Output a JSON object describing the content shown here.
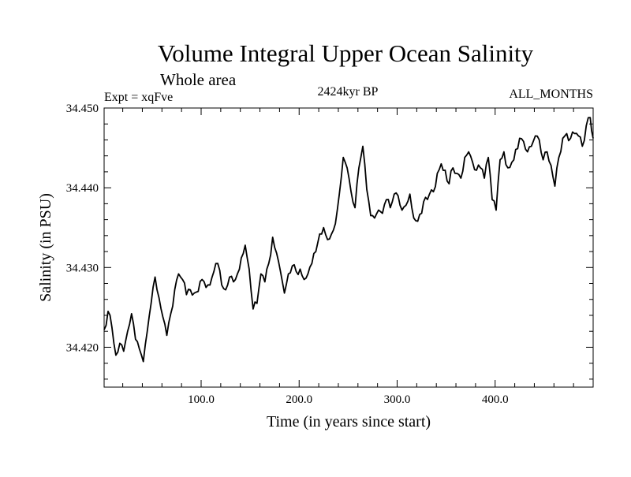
{
  "chart_data": {
    "type": "line",
    "title": "Volume Integral Upper Ocean Salinity",
    "subtitle": "Whole area",
    "experiment_label": "Expt = xqFve",
    "period_label": "2424kyr BP",
    "months_label": "ALL_MONTHS",
    "xlabel": "Time (in years since start)",
    "ylabel": "Salinity (in PSU)",
    "xlim": [
      1,
      500
    ],
    "ylim": [
      34.415,
      34.45
    ],
    "x_ticks": [
      100,
      200,
      300,
      400
    ],
    "x_tick_labels": [
      "100.0",
      "200.0",
      "300.0",
      "400.0"
    ],
    "y_ticks": [
      34.42,
      34.43,
      34.44,
      34.45
    ],
    "y_tick_labels": [
      "34.420",
      "34.430",
      "34.440",
      "34.450"
    ],
    "grid": false,
    "series": [
      {
        "name": "salinity",
        "color": "#000000",
        "x": [
          1,
          5,
          9,
          13,
          17,
          21,
          25,
          29,
          33,
          37,
          41,
          45,
          49,
          53,
          57,
          61,
          65,
          69,
          73,
          77,
          81,
          85,
          89,
          93,
          97,
          101,
          105,
          109,
          113,
          117,
          121,
          125,
          129,
          133,
          137,
          141,
          145,
          149,
          153,
          157,
          161,
          165,
          169,
          173,
          177,
          181,
          185,
          189,
          193,
          197,
          201,
          205,
          209,
          213,
          217,
          221,
          225,
          229,
          233,
          237,
          241,
          245,
          249,
          253,
          257,
          261,
          265,
          269,
          273,
          277,
          281,
          285,
          289,
          293,
          297,
          301,
          305,
          309,
          313,
          317,
          321,
          325,
          329,
          333,
          337,
          341,
          345,
          349,
          353,
          357,
          361,
          365,
          369,
          373,
          377,
          381,
          385,
          389,
          393,
          397,
          401,
          405,
          409,
          413,
          417,
          421,
          425,
          429,
          433,
          437,
          441,
          445,
          449,
          453,
          457,
          461,
          465,
          469,
          473,
          477,
          481,
          485,
          489,
          493,
          497,
          500
        ],
        "values": [
          34.4222,
          34.4245,
          34.4225,
          34.419,
          34.4205,
          34.4195,
          34.422,
          34.4242,
          34.421,
          34.4198,
          34.4182,
          34.422,
          34.4255,
          34.4288,
          34.4262,
          34.4238,
          34.4215,
          34.4242,
          34.4272,
          34.4292,
          34.4285,
          34.4266,
          34.4272,
          34.4268,
          34.427,
          34.4285,
          34.4275,
          34.4278,
          34.4295,
          34.4305,
          34.4278,
          34.4272,
          34.4288,
          34.4282,
          34.4292,
          34.4312,
          34.4328,
          34.4298,
          34.4248,
          34.4255,
          34.4292,
          34.4282,
          34.4305,
          34.4338,
          34.4318,
          34.4295,
          34.4268,
          34.4292,
          34.4302,
          34.4295,
          34.4298,
          34.4285,
          34.4292,
          34.4305,
          34.432,
          34.4342,
          34.435,
          34.4335,
          34.4342,
          34.4355,
          34.4392,
          34.4438,
          34.4425,
          34.4395,
          34.4375,
          34.4425,
          34.4452,
          34.4398,
          34.4365,
          34.4362,
          34.4372,
          34.4368,
          34.4385,
          34.4375,
          34.4392,
          34.439,
          34.4372,
          34.4378,
          34.4392,
          34.4362,
          34.4358,
          34.4368,
          34.4388,
          34.4392,
          34.4395,
          34.4418,
          34.443,
          34.4422,
          34.4405,
          34.4425,
          34.4418,
          34.4412,
          34.4438,
          34.4445,
          34.4432,
          34.4422,
          34.4425,
          34.4412,
          34.4438,
          34.4385,
          34.4372,
          34.4435,
          34.4445,
          34.4425,
          34.4432,
          34.4448,
          34.4462,
          34.4458,
          34.4445,
          34.4452,
          34.4465,
          34.446,
          34.4435,
          34.4445,
          34.4428,
          34.4402,
          34.4438,
          34.4462,
          34.4468,
          34.4462,
          34.4468,
          34.4465,
          34.4452,
          34.4478,
          34.4488,
          34.4462
        ]
      }
    ]
  }
}
